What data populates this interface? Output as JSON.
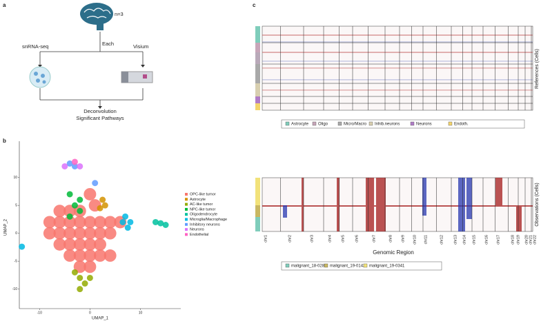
{
  "panel_a": {
    "letter": "a",
    "n": "n=3",
    "each": "Each",
    "left": "snRNA-seq",
    "right": "Visium",
    "result1": "Deconvolution",
    "result2": "Significant Pathways"
  },
  "chart_data": {
    "type": "scatter",
    "letter": "b",
    "xlabel": "UMAP_1",
    "ylabel": "UMAP_2",
    "xlim": [
      -14,
      18
    ],
    "ylim": [
      -13.5,
      16.5
    ],
    "xticks": [
      -10,
      0,
      10
    ],
    "yticks": [
      -10,
      -5,
      0,
      5,
      10
    ],
    "series": [
      {
        "name": "OPC-like tumor",
        "color": "#F8766D",
        "x": [
          -6,
          -4,
          -2,
          -8,
          -6,
          -4,
          -2,
          0,
          2,
          4,
          6,
          -8,
          -6,
          -4,
          -2,
          0,
          2,
          4,
          -6,
          -4,
          -2,
          0,
          2,
          -4,
          -2,
          0,
          2,
          4,
          -2,
          0,
          0,
          1
        ],
        "y": [
          4,
          4,
          4,
          2,
          2,
          2,
          2,
          2,
          2,
          2,
          2,
          0,
          0,
          0,
          0,
          0,
          0,
          0,
          -2,
          -2,
          -2,
          -2,
          -2,
          -4,
          -4,
          -4,
          -4,
          -4,
          -6,
          -6,
          7,
          5
        ]
      },
      {
        "name": "Astrocyte",
        "color": "#D39200",
        "x": [
          2.5,
          3,
          2
        ],
        "y": [
          6,
          5,
          4.5
        ]
      },
      {
        "name": "AC-like tumor",
        "color": "#93AA00",
        "x": [
          -2,
          -1,
          -3,
          0,
          -2
        ],
        "y": [
          -8,
          -9,
          -7,
          -8,
          -10
        ]
      },
      {
        "name": "NPC-like tumor",
        "color": "#00BA38",
        "x": [
          -4,
          -3,
          -2,
          -4,
          -2
        ],
        "y": [
          7,
          5,
          4,
          3,
          6
        ]
      },
      {
        "name": "Oligodendrocyte",
        "color": "#00C19F",
        "x": [
          13,
          14,
          15
        ],
        "y": [
          2,
          1.8,
          1.5
        ]
      },
      {
        "name": "Microglia/Macrophage",
        "color": "#00B9E3",
        "x": [
          7,
          8,
          7.5,
          6.5,
          -13.5
        ],
        "y": [
          3,
          2,
          1,
          2,
          -2.4
        ]
      },
      {
        "name": "Inhibitory neurons",
        "color": "#619CFF",
        "x": [
          -4,
          -3,
          1
        ],
        "y": [
          12.5,
          12,
          9
        ]
      },
      {
        "name": "Neurons",
        "color": "#DB72FB",
        "x": [
          -5,
          -2
        ],
        "y": [
          12,
          12
        ]
      },
      {
        "name": "Endothelial",
        "color": "#FF61C3",
        "x": [
          -3
        ],
        "y": [
          12.8
        ]
      }
    ]
  },
  "panel_c": {
    "letter": "c",
    "ref_label": "References (Cells)",
    "obs_label": "Observations (Cells)",
    "xlabel": "Genomic Region",
    "chromosomes": [
      "chr1",
      "chr2",
      "chr3",
      "chr4",
      "chr5",
      "chr6",
      "chr7",
      "chr8",
      "chr9",
      "chr10",
      "chr11",
      "chr12",
      "chr13",
      "chr14",
      "chr15",
      "chr16",
      "chr17",
      "chr18",
      "chr19",
      "chr20",
      "chr21",
      "chr22"
    ],
    "ref_legend": [
      {
        "name": "Astrocyte",
        "color": "#7fcdbb"
      },
      {
        "name": "Oligo",
        "color": "#c7a6b9"
      },
      {
        "name": "Micro/Macro",
        "color": "#a9a9a9"
      },
      {
        "name": "Inhib.neurons",
        "color": "#d8cfb0"
      },
      {
        "name": "Neurons",
        "color": "#b07cc6"
      },
      {
        "name": "Endoth.",
        "color": "#f3d46b"
      }
    ],
    "obs_legend": [
      {
        "name": "malignant_18-0282",
        "color": "#7fcdbb"
      },
      {
        "name": "malignant_19-0142",
        "color": "#c9b862"
      },
      {
        "name": "malignant_19-0341",
        "color": "#f2e27a"
      }
    ]
  }
}
